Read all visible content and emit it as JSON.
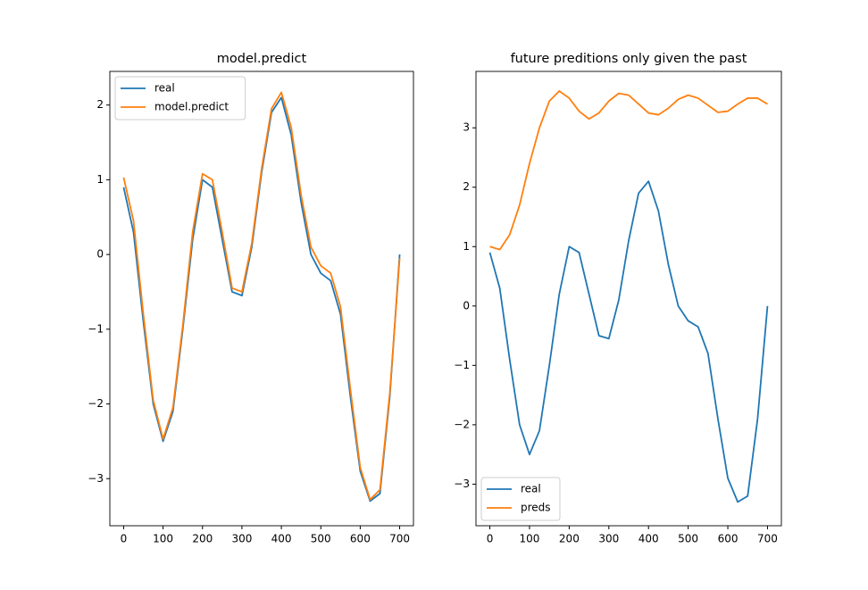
{
  "chart_data": [
    {
      "type": "line",
      "title": "model.predict",
      "x": [
        0,
        25,
        50,
        75,
        100,
        125,
        150,
        175,
        200,
        225,
        250,
        275,
        300,
        325,
        350,
        375,
        400,
        425,
        450,
        475,
        500,
        525,
        550,
        575,
        600,
        625,
        650,
        675,
        700
      ],
      "series": [
        {
          "name": "real",
          "color": "#1f77b4",
          "values": [
            0.9,
            0.3,
            -0.9,
            -2.0,
            -2.5,
            -2.1,
            -1.0,
            0.2,
            1.0,
            0.9,
            0.2,
            -0.5,
            -0.55,
            0.1,
            1.1,
            1.9,
            2.1,
            1.6,
            0.7,
            0.0,
            -0.25,
            -0.35,
            -0.8,
            -1.9,
            -2.9,
            -3.3,
            -3.2,
            -1.9,
            0.0
          ]
        },
        {
          "name": "model.predict",
          "color": "#ff7f0e",
          "values": [
            1.03,
            0.45,
            -0.8,
            -1.95,
            -2.47,
            -2.05,
            -0.95,
            0.3,
            1.08,
            1.0,
            0.3,
            -0.45,
            -0.5,
            0.15,
            1.15,
            1.95,
            2.17,
            1.7,
            0.8,
            0.1,
            -0.15,
            -0.25,
            -0.7,
            -1.8,
            -2.85,
            -3.28,
            -3.15,
            -1.85,
            -0.05
          ]
        }
      ],
      "xlim": [
        -35,
        735
      ],
      "xticks": [
        0,
        100,
        200,
        300,
        400,
        500,
        600,
        700
      ],
      "ylim": [
        -3.63,
        2.45
      ],
      "yticks": [
        {
          "value": -3,
          "label": "−3"
        },
        {
          "value": -2,
          "label": "−2"
        },
        {
          "value": -1,
          "label": "−1"
        },
        0,
        1,
        2
      ],
      "legend": "upper left"
    },
    {
      "type": "line",
      "title": "future preditions only given the past",
      "x": [
        0,
        25,
        50,
        75,
        100,
        125,
        150,
        175,
        200,
        225,
        250,
        275,
        300,
        325,
        350,
        375,
        400,
        425,
        450,
        475,
        500,
        525,
        550,
        575,
        600,
        625,
        650,
        675,
        700
      ],
      "series": [
        {
          "name": "real",
          "color": "#1f77b4",
          "values": [
            0.9,
            0.3,
            -0.9,
            -2.0,
            -2.5,
            -2.1,
            -1.0,
            0.2,
            1.0,
            0.9,
            0.2,
            -0.5,
            -0.55,
            0.1,
            1.1,
            1.9,
            2.1,
            1.6,
            0.7,
            0.0,
            -0.25,
            -0.35,
            -0.8,
            -1.9,
            -2.9,
            -3.3,
            -3.2,
            -1.9,
            0.0
          ]
        },
        {
          "name": "preds",
          "color": "#ff7f0e",
          "values": [
            1.0,
            0.95,
            1.2,
            1.7,
            2.4,
            3.0,
            3.45,
            3.62,
            3.5,
            3.28,
            3.15,
            3.25,
            3.45,
            3.58,
            3.55,
            3.4,
            3.25,
            3.22,
            3.33,
            3.48,
            3.55,
            3.5,
            3.38,
            3.26,
            3.28,
            3.4,
            3.5,
            3.5,
            3.4
          ]
        }
      ],
      "xlim": [
        -35,
        735
      ],
      "xticks": [
        0,
        100,
        200,
        300,
        400,
        500,
        600,
        700
      ],
      "ylim": [
        -3.7,
        3.95
      ],
      "yticks": [
        {
          "value": -3,
          "label": "−3"
        },
        {
          "value": -2,
          "label": "−2"
        },
        {
          "value": -1,
          "label": "−1"
        },
        0,
        1,
        2,
        3
      ],
      "legend": "lower left"
    }
  ]
}
